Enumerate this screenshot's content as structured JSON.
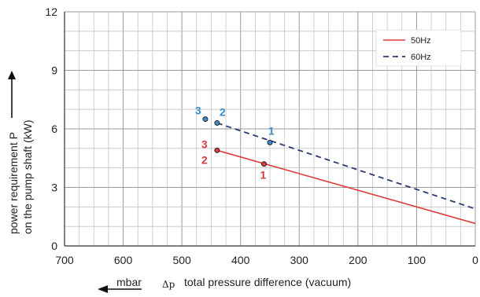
{
  "chart_data": {
    "type": "line",
    "x_axis": {
      "title": "total pressure difference (vacuum)",
      "symbol": "Δp",
      "unit": "mbar",
      "range": [
        700,
        0
      ],
      "ticks": [
        700,
        600,
        500,
        400,
        300,
        200,
        100,
        0
      ],
      "reversed": true
    },
    "y_axis": {
      "title_line1": "power requirement P",
      "title_line2": "on the pump shaft (kW)",
      "range": [
        0,
        12
      ],
      "ticks": [
        0,
        3,
        6,
        9,
        12
      ]
    },
    "grid": true,
    "legend_position": "top-right",
    "series": [
      {
        "name": "50Hz",
        "color": "#e03b3b",
        "dash": "solid",
        "points": [
          [
            440,
            4.9
          ],
          [
            0,
            1.15
          ]
        ],
        "markers": [
          {
            "label": "1",
            "x": 360,
            "y": 4.2
          },
          {
            "label": "2",
            "x": 440,
            "y": 4.9
          },
          {
            "label": "3",
            "x": 440,
            "y": 4.9
          }
        ]
      },
      {
        "name": "60Hz",
        "color": "#2b3a75",
        "dash": "dashed",
        "points": [
          [
            440,
            6.3
          ],
          [
            0,
            1.9
          ]
        ],
        "markers": [
          {
            "label": "1",
            "x": 350,
            "y": 5.3
          },
          {
            "label": "2",
            "x": 440,
            "y": 6.3
          },
          {
            "label": "3",
            "x": 460,
            "y": 6.5
          }
        ]
      }
    ],
    "marker_label_colors": {
      "50Hz": "#d83c3c",
      "60Hz": "#3a8cc8"
    }
  }
}
